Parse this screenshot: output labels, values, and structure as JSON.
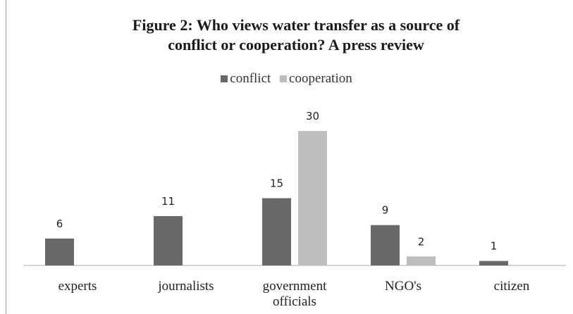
{
  "chart_data": {
    "type": "bar",
    "title_lines": [
      "Figure 2: Who  views water transfer as a source of",
      "conflict or cooperation? A press review"
    ],
    "categories": [
      [
        "experts"
      ],
      [
        "journalists"
      ],
      [
        "government",
        "officials"
      ],
      [
        "NGO's"
      ],
      [
        "citizen"
      ]
    ],
    "series": [
      {
        "name": "conflict",
        "color": "#686868",
        "values": [
          6,
          11,
          15,
          9,
          1
        ]
      },
      {
        "name": "cooperation",
        "color": "#bdbdbd",
        "values": [
          null,
          null,
          30,
          2,
          null
        ]
      }
    ],
    "ylim": [
      0,
      30
    ],
    "grid": false,
    "legend_position": "top-center",
    "xlabel": "",
    "ylabel": ""
  }
}
